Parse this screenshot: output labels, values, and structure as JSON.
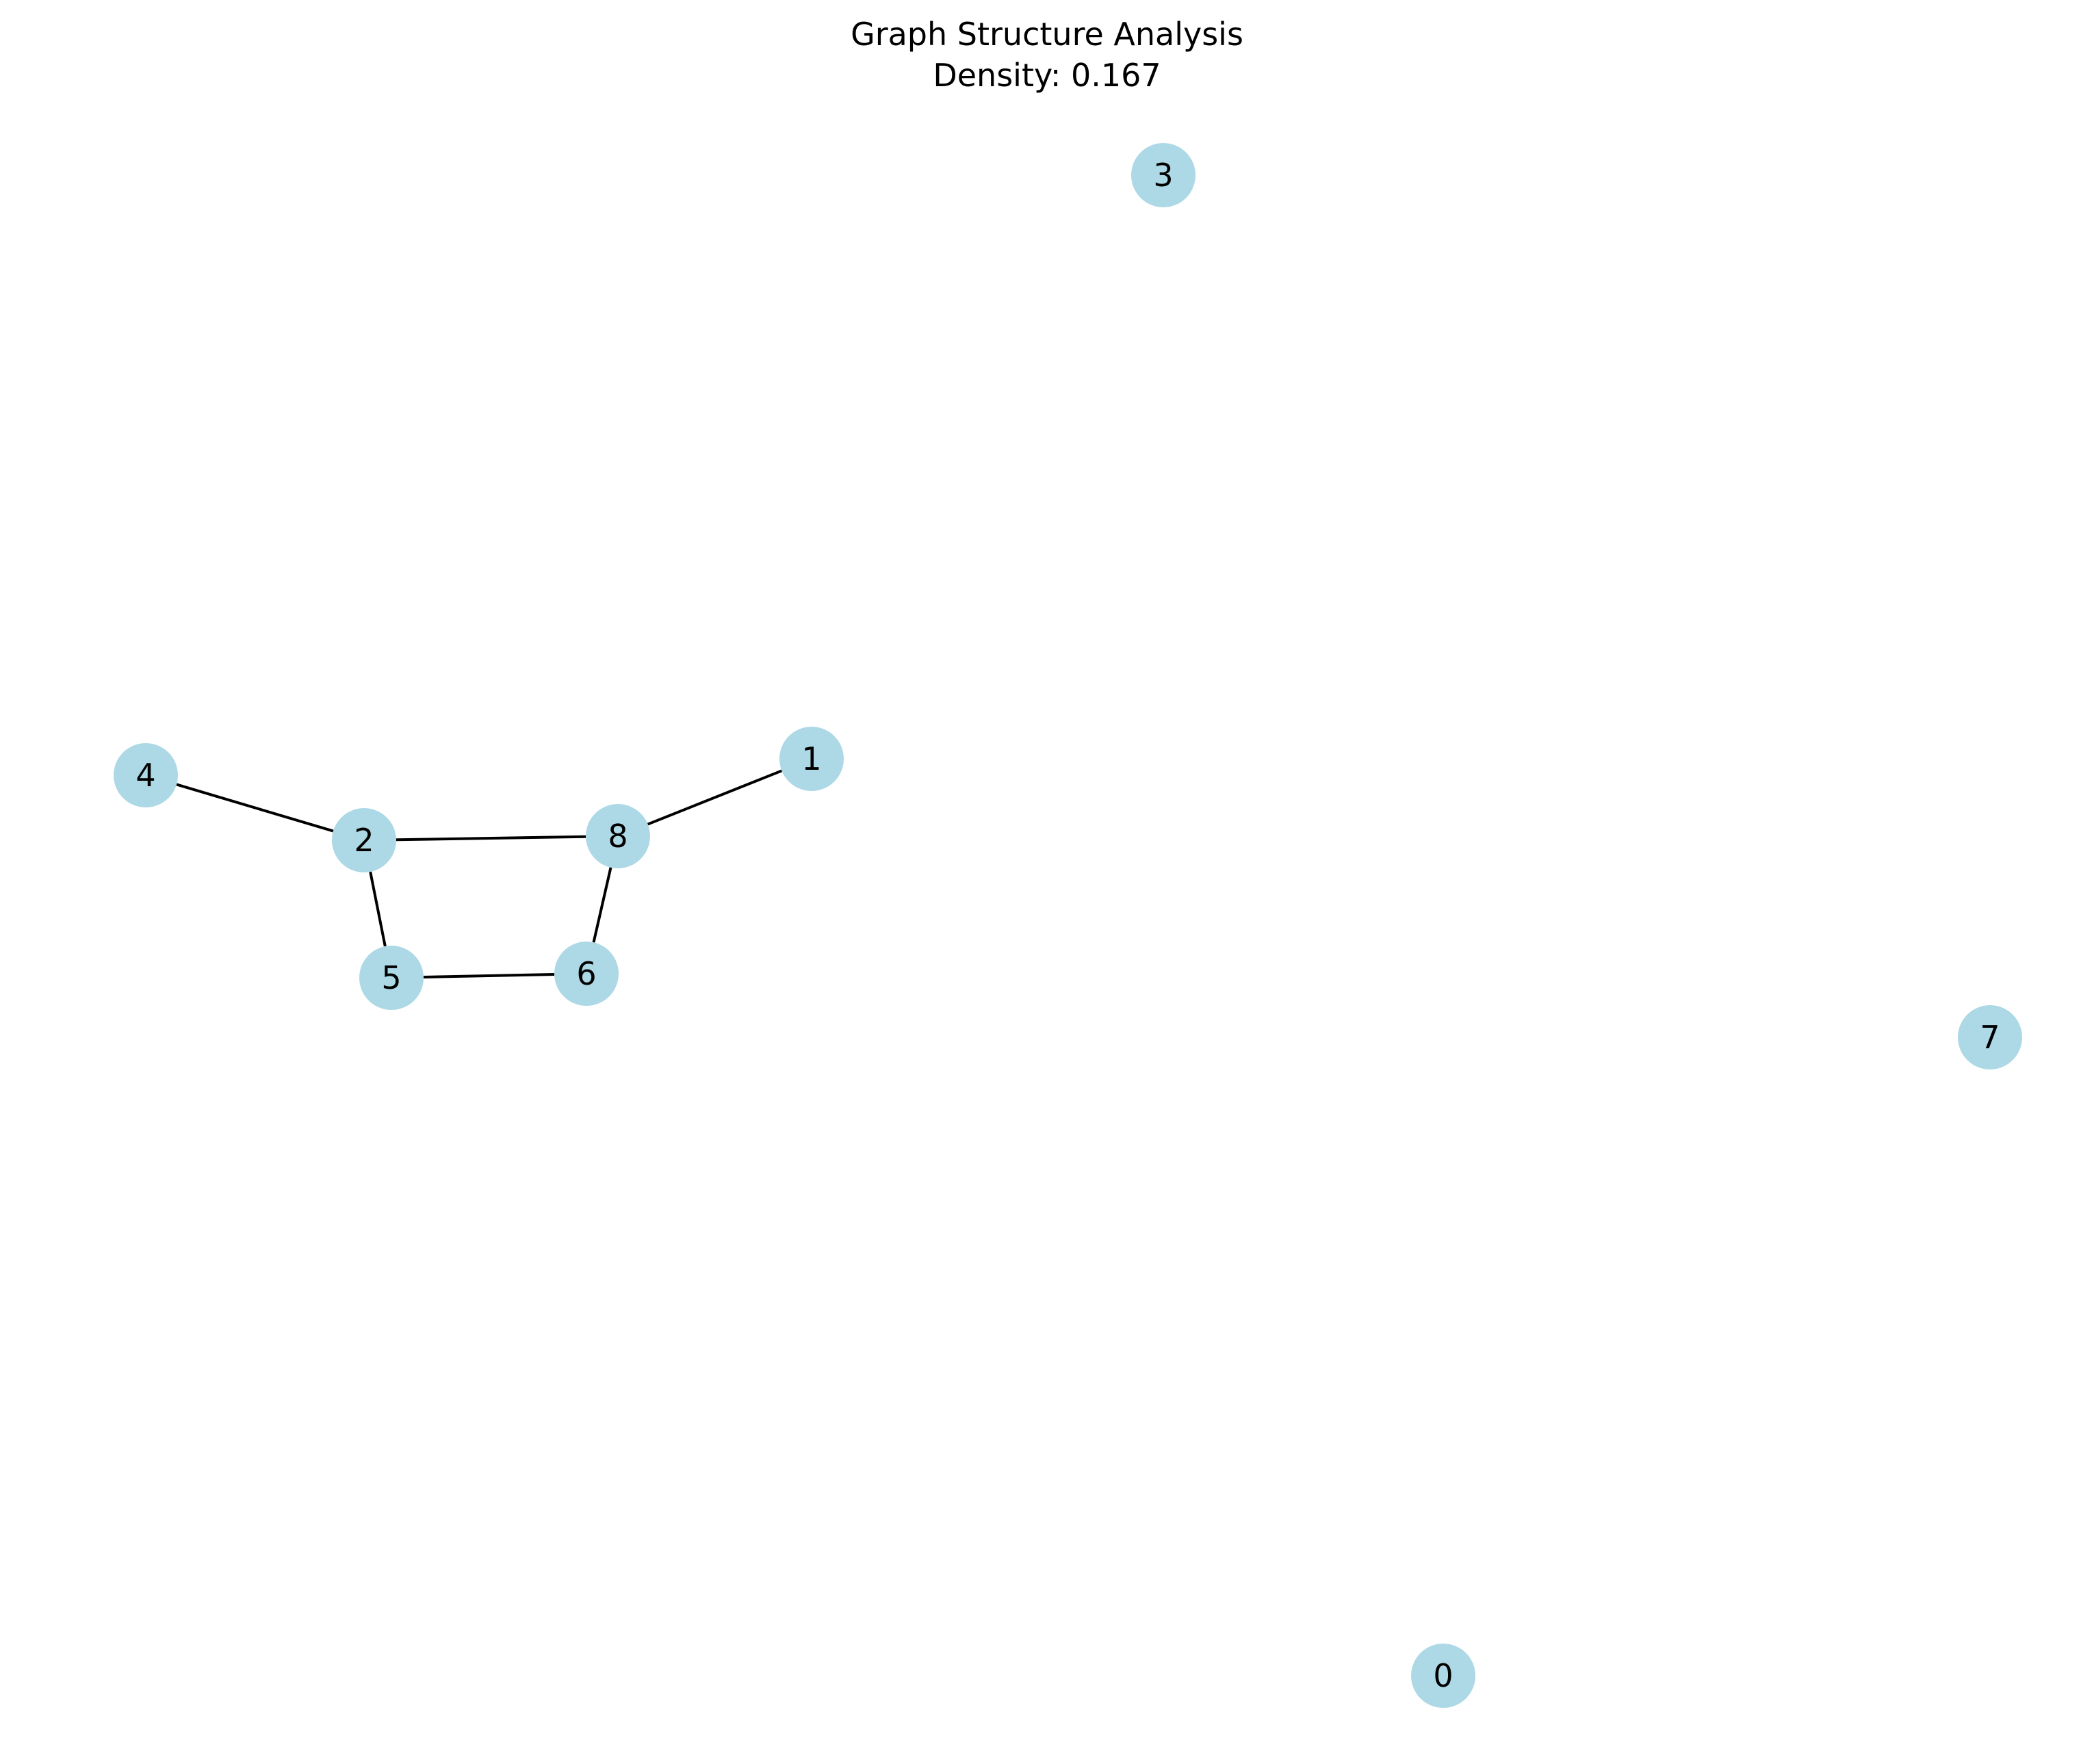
{
  "diagram": {
    "type": "graph",
    "title_lines": [
      "Graph Structure Analysis",
      "Density: 0.167"
    ],
    "node_color": "#add8e6",
    "edge_color": "#000000",
    "label_color": "#000000",
    "nodes": [
      {
        "id": "0",
        "label": "0"
      },
      {
        "id": "1",
        "label": "1"
      },
      {
        "id": "2",
        "label": "2"
      },
      {
        "id": "3",
        "label": "3"
      },
      {
        "id": "4",
        "label": "4"
      },
      {
        "id": "5",
        "label": "5"
      },
      {
        "id": "6",
        "label": "6"
      },
      {
        "id": "7",
        "label": "7"
      },
      {
        "id": "8",
        "label": "8"
      }
    ],
    "edges": [
      {
        "from": "4",
        "to": "2"
      },
      {
        "from": "2",
        "to": "8"
      },
      {
        "from": "8",
        "to": "1"
      },
      {
        "from": "2",
        "to": "5"
      },
      {
        "from": "5",
        "to": "6"
      },
      {
        "from": "6",
        "to": "8"
      }
    ]
  }
}
